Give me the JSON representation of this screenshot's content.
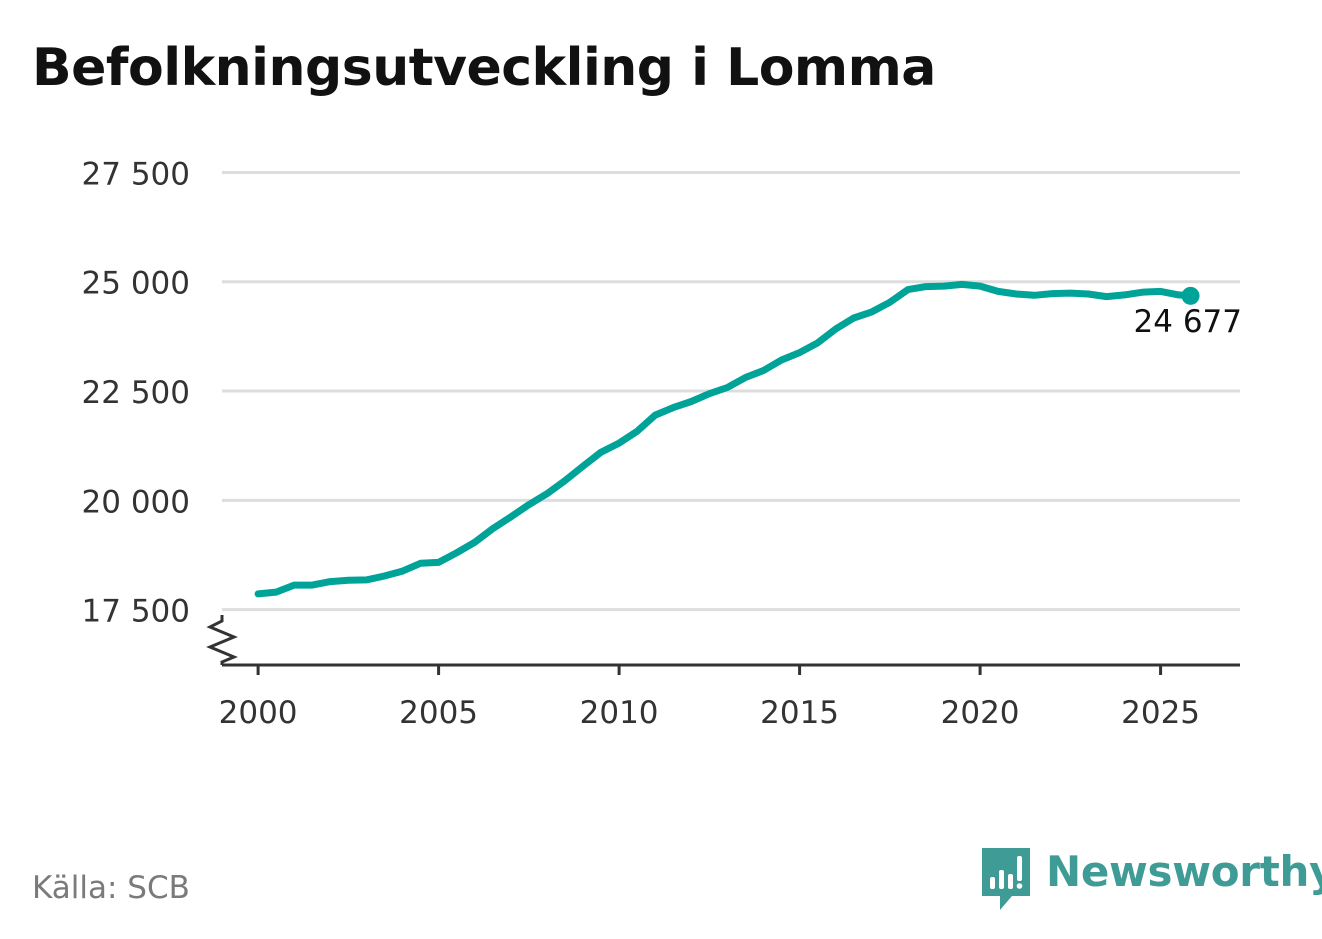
{
  "title": "Befolkningsutveckling i Lomma",
  "source": "Källa: SCB",
  "brand": {
    "name": "Newsworthy",
    "icon": "bar-chart-speech-bubble-icon",
    "color": "#3f9b95"
  },
  "colors": {
    "line": "#00a398",
    "grid": "#dddddd",
    "axis": "#333333",
    "tick_text": "#333333",
    "label_text": "#111111"
  },
  "chart_data": {
    "type": "line",
    "title": "Befolkningsutveckling i Lomma",
    "xlabel": "",
    "ylabel": "",
    "xlim": [
      1999,
      2027.2
    ],
    "ylim": [
      16233,
      28700
    ],
    "x_ticks": [
      2000,
      2005,
      2010,
      2015,
      2020,
      2025
    ],
    "x_tick_labels": [
      "2000",
      "2005",
      "2010",
      "2015",
      "2020",
      "2025"
    ],
    "y_ticks": [
      17500,
      20000,
      22500,
      25000,
      27500
    ],
    "y_tick_labels": [
      "17 500",
      "20 000",
      "22 500",
      "25 000",
      "27 500"
    ],
    "y_axis_break": true,
    "grid": true,
    "series": [
      {
        "name": "Lomma",
        "x": [
          2000.0,
          2000.5,
          2001.0,
          2001.5,
          2002.0,
          2002.5,
          2003.0,
          2003.5,
          2004.0,
          2004.5,
          2005.0,
          2005.5,
          2006.0,
          2006.5,
          2007.0,
          2007.5,
          2008.0,
          2008.5,
          2009.0,
          2009.5,
          2010.0,
          2010.5,
          2011.0,
          2011.5,
          2012.0,
          2012.5,
          2013.0,
          2013.5,
          2014.0,
          2014.5,
          2015.0,
          2015.5,
          2016.0,
          2016.5,
          2017.0,
          2017.5,
          2018.0,
          2018.5,
          2019.0,
          2019.5,
          2020.0,
          2020.5,
          2021.0,
          2021.5,
          2022.0,
          2022.5,
          2023.0,
          2023.5,
          2024.0,
          2024.5,
          2025.0,
          2025.5,
          2025.83
        ],
        "values": [
          17860,
          17900,
          18060,
          18060,
          18140,
          18170,
          18180,
          18270,
          18380,
          18560,
          18580,
          18800,
          19040,
          19350,
          19620,
          19900,
          20150,
          20450,
          20780,
          21100,
          21310,
          21580,
          21950,
          22120,
          22260,
          22440,
          22580,
          22810,
          22970,
          23210,
          23380,
          23600,
          23920,
          24170,
          24310,
          24530,
          24820,
          24890,
          24900,
          24940,
          24900,
          24780,
          24720,
          24690,
          24730,
          24740,
          24720,
          24660,
          24700,
          24760,
          24780,
          24700,
          24677
        ]
      }
    ],
    "last_value_label": "24 677"
  }
}
